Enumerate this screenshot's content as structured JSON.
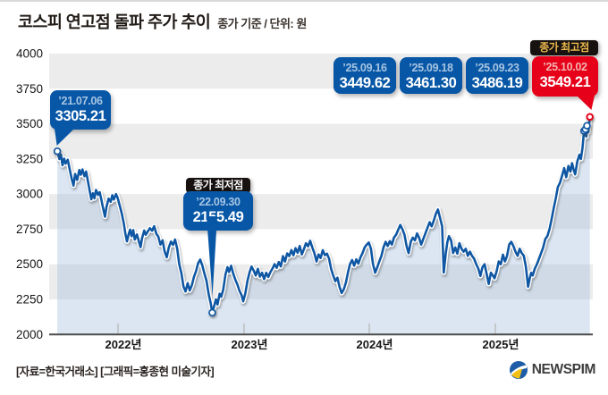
{
  "header": {
    "title": "코스피 연고점 돌파 주가 추이",
    "subtitle": "종가 기준 / 단위: 원"
  },
  "annotations": {
    "start": {
      "date": "’21.07.06",
      "value": "3305.21"
    },
    "low": {
      "tag": "종가 최저점",
      "date": "’22.09.30",
      "value": "2155.49"
    },
    "high": {
      "tag": "종가 최고점",
      "date": "’25.10.02",
      "value": "3549.21"
    },
    "top_boxes": [
      {
        "date": "’25.09.16",
        "value": "3449.62"
      },
      {
        "date": "’25.09.18",
        "value": "3461.30"
      },
      {
        "date": "’25.09.23",
        "value": "3486.19"
      }
    ]
  },
  "footer": {
    "source": "[자료=한국거래소] [그래픽=홍종현 미술기자]",
    "logo_text": "NEWSPIM"
  },
  "colors": {
    "box_blue": "#0857a6",
    "box_red": "#e60019",
    "tag_black": "#17120f",
    "tag_gold": "#ecb94e",
    "line": "#0f57a3",
    "band_gray": "#ececec",
    "band_white": "#ffffff",
    "area_fill": "rgba(161,189,221,0.38)",
    "axis": "#4c4c4c",
    "tick": "#b4b4b4"
  },
  "chart_data": {
    "type": "line",
    "title": "코스피 연고점 돌파 주가 추이",
    "subtitle": "종가 기준 / 단위: 원",
    "unit": "원",
    "ylim": [
      2000,
      4000
    ],
    "y_ticks": [
      4000,
      3750,
      3500,
      3250,
      3000,
      2750,
      2500,
      2250,
      2000
    ],
    "x_ticks": [
      "2022년",
      "2023년",
      "2024년",
      "2025년"
    ],
    "x_unit": "months since 2021-07",
    "grid": "horizontal-bands",
    "legend": "none",
    "markers": [
      {
        "t": 0.2,
        "v": 3305.21,
        "type": "blue",
        "date": "’21.07.06"
      },
      {
        "t": 15.0,
        "v": 2155.49,
        "type": "blue",
        "date": "’22.09.30"
      },
      {
        "t": 50.5,
        "v": 3449.62,
        "type": "blue",
        "date": "’25.09.16"
      },
      {
        "t": 50.63,
        "v": 3461.3,
        "type": "blue",
        "date": "’25.09.18"
      },
      {
        "t": 50.78,
        "v": 3486.19,
        "type": "blue",
        "date": "’25.09.23"
      },
      {
        "t": 51.05,
        "v": 3549.21,
        "type": "red",
        "date": "’25.10.02"
      }
    ],
    "series": [
      {
        "name": "코스피 종가",
        "points": [
          [
            0.2,
            3305
          ],
          [
            0.4,
            3250
          ],
          [
            0.55,
            3281
          ],
          [
            0.7,
            3205
          ],
          [
            0.85,
            3252
          ],
          [
            1.0,
            3217
          ],
          [
            1.2,
            3244
          ],
          [
            1.4,
            3171
          ],
          [
            1.6,
            3100
          ],
          [
            1.75,
            3060
          ],
          [
            1.9,
            3143
          ],
          [
            2.1,
            3100
          ],
          [
            2.3,
            3171
          ],
          [
            2.45,
            3138
          ],
          [
            2.6,
            3175
          ],
          [
            2.8,
            3127
          ],
          [
            2.95,
            3160
          ],
          [
            3.1,
            3103
          ],
          [
            3.3,
            3020
          ],
          [
            3.45,
            2962
          ],
          [
            3.6,
            3006
          ],
          [
            3.75,
            2970
          ],
          [
            3.9,
            3029
          ],
          [
            4.1,
            2994
          ],
          [
            4.25,
            3013
          ],
          [
            4.4,
            2962
          ],
          [
            4.55,
            2909
          ],
          [
            4.75,
            2839
          ],
          [
            4.9,
            2909
          ],
          [
            5.1,
            2968
          ],
          [
            5.3,
            2945
          ],
          [
            5.45,
            2992
          ],
          [
            5.6,
            2961
          ],
          [
            5.8,
            3000
          ],
          [
            5.95,
            2977
          ],
          [
            6.15,
            2921
          ],
          [
            6.35,
            2864
          ],
          [
            6.55,
            2792
          ],
          [
            6.7,
            2720
          ],
          [
            6.85,
            2663
          ],
          [
            7.0,
            2709
          ],
          [
            7.15,
            2747
          ],
          [
            7.3,
            2700
          ],
          [
            7.45,
            2744
          ],
          [
            7.6,
            2676
          ],
          [
            7.8,
            2713
          ],
          [
            8.0,
            2661
          ],
          [
            8.15,
            2622
          ],
          [
            8.3,
            2686
          ],
          [
            8.5,
            2740
          ],
          [
            8.65,
            2710
          ],
          [
            8.85,
            2735
          ],
          [
            9.05,
            2757
          ],
          [
            9.25,
            2739
          ],
          [
            9.45,
            2771
          ],
          [
            9.65,
            2718
          ],
          [
            9.85,
            2696
          ],
          [
            10.05,
            2640
          ],
          [
            10.25,
            2671
          ],
          [
            10.45,
            2592
          ],
          [
            10.65,
            2550
          ],
          [
            10.85,
            2620
          ],
          [
            11.05,
            2662
          ],
          [
            11.25,
            2638
          ],
          [
            11.45,
            2676
          ],
          [
            11.65,
            2611
          ],
          [
            11.85,
            2500
          ],
          [
            12.05,
            2435
          ],
          [
            12.25,
            2342
          ],
          [
            12.45,
            2306
          ],
          [
            12.65,
            2366
          ],
          [
            12.85,
            2314
          ],
          [
            13.05,
            2351
          ],
          [
            13.25,
            2410
          ],
          [
            13.45,
            2452
          ],
          [
            13.65,
            2508
          ],
          [
            13.85,
            2533
          ],
          [
            14.05,
            2491
          ],
          [
            14.25,
            2435
          ],
          [
            14.45,
            2381
          ],
          [
            14.65,
            2290
          ],
          [
            14.85,
            2220
          ],
          [
            15.0,
            2155.49
          ],
          [
            15.2,
            2210
          ],
          [
            15.35,
            2250
          ],
          [
            15.5,
            2213
          ],
          [
            15.7,
            2290
          ],
          [
            15.85,
            2268
          ],
          [
            16.05,
            2320
          ],
          [
            16.25,
            2425
          ],
          [
            16.45,
            2480
          ],
          [
            16.6,
            2445
          ],
          [
            16.8,
            2490
          ],
          [
            17.0,
            2434
          ],
          [
            17.2,
            2390
          ],
          [
            17.4,
            2356
          ],
          [
            17.6,
            2310
          ],
          [
            17.8,
            2280
          ],
          [
            17.95,
            2236
          ],
          [
            18.15,
            2290
          ],
          [
            18.35,
            2380
          ],
          [
            18.55,
            2440
          ],
          [
            18.75,
            2484
          ],
          [
            18.95,
            2455
          ],
          [
            19.15,
            2420
          ],
          [
            19.35,
            2468
          ],
          [
            19.55,
            2412
          ],
          [
            19.75,
            2440
          ],
          [
            19.95,
            2394
          ],
          [
            20.15,
            2440
          ],
          [
            20.35,
            2410
          ],
          [
            20.55,
            2444
          ],
          [
            20.75,
            2470
          ],
          [
            20.95,
            2501
          ],
          [
            21.15,
            2475
          ],
          [
            21.35,
            2516
          ],
          [
            21.55,
            2484
          ],
          [
            21.75,
            2558
          ],
          [
            21.95,
            2520
          ],
          [
            22.15,
            2577
          ],
          [
            22.35,
            2558
          ],
          [
            22.55,
            2601
          ],
          [
            22.75,
            2564
          ],
          [
            22.95,
            2615
          ],
          [
            23.15,
            2582
          ],
          [
            23.35,
            2630
          ],
          [
            23.55,
            2570
          ],
          [
            23.75,
            2608
          ],
          [
            23.95,
            2650
          ],
          [
            24.15,
            2628
          ],
          [
            24.35,
            2667
          ],
          [
            24.55,
            2620
          ],
          [
            24.75,
            2580
          ],
          [
            24.95,
            2520
          ],
          [
            25.15,
            2570
          ],
          [
            25.35,
            2545
          ],
          [
            25.55,
            2600
          ],
          [
            25.75,
            2565
          ],
          [
            25.95,
            2575
          ],
          [
            26.15,
            2540
          ],
          [
            26.35,
            2465
          ],
          [
            26.55,
            2420
          ],
          [
            26.75,
            2380
          ],
          [
            26.95,
            2405
          ],
          [
            27.15,
            2340
          ],
          [
            27.35,
            2295
          ],
          [
            27.55,
            2320
          ],
          [
            27.75,
            2368
          ],
          [
            27.95,
            2440
          ],
          [
            28.15,
            2500
          ],
          [
            28.35,
            2530
          ],
          [
            28.55,
            2490
          ],
          [
            28.75,
            2535
          ],
          [
            28.95,
            2505
          ],
          [
            29.15,
            2550
          ],
          [
            29.35,
            2580
          ],
          [
            29.55,
            2620
          ],
          [
            29.75,
            2640
          ],
          [
            29.95,
            2655
          ],
          [
            30.15,
            2610
          ],
          [
            30.35,
            2500
          ],
          [
            30.55,
            2440
          ],
          [
            30.75,
            2478
          ],
          [
            30.95,
            2520
          ],
          [
            31.15,
            2560
          ],
          [
            31.35,
            2620
          ],
          [
            31.55,
            2660
          ],
          [
            31.75,
            2630
          ],
          [
            31.95,
            2665
          ],
          [
            32.15,
            2640
          ],
          [
            32.35,
            2690
          ],
          [
            32.55,
            2710
          ],
          [
            32.75,
            2745
          ],
          [
            32.95,
            2780
          ],
          [
            33.15,
            2750
          ],
          [
            33.35,
            2710
          ],
          [
            33.55,
            2630
          ],
          [
            33.75,
            2580
          ],
          [
            33.95,
            2660
          ],
          [
            34.15,
            2690
          ],
          [
            34.35,
            2670
          ],
          [
            34.55,
            2720
          ],
          [
            34.75,
            2690
          ],
          [
            34.95,
            2640
          ],
          [
            35.15,
            2680
          ],
          [
            35.35,
            2720
          ],
          [
            35.55,
            2760
          ],
          [
            35.75,
            2800
          ],
          [
            35.95,
            2770
          ],
          [
            36.15,
            2810
          ],
          [
            36.35,
            2860
          ],
          [
            36.55,
            2890
          ],
          [
            36.75,
            2830
          ],
          [
            36.95,
            2770
          ],
          [
            37.1,
            2441
          ],
          [
            37.3,
            2580
          ],
          [
            37.45,
            2660
          ],
          [
            37.6,
            2700
          ],
          [
            37.8,
            2670
          ],
          [
            38.0,
            2580
          ],
          [
            38.2,
            2620
          ],
          [
            38.4,
            2575
          ],
          [
            38.6,
            2650
          ],
          [
            38.8,
            2610
          ],
          [
            39.0,
            2590
          ],
          [
            39.2,
            2610
          ],
          [
            39.4,
            2560
          ],
          [
            39.6,
            2590
          ],
          [
            39.8,
            2560
          ],
          [
            40.0,
            2540
          ],
          [
            40.2,
            2500
          ],
          [
            40.4,
            2470
          ],
          [
            40.6,
            2417
          ],
          [
            40.8,
            2480
          ],
          [
            41.0,
            2500
          ],
          [
            41.2,
            2430
          ],
          [
            41.4,
            2360
          ],
          [
            41.6,
            2440
          ],
          [
            41.8,
            2420
          ],
          [
            41.95,
            2400
          ],
          [
            42.15,
            2450
          ],
          [
            42.35,
            2520
          ],
          [
            42.55,
            2500
          ],
          [
            42.75,
            2568
          ],
          [
            42.95,
            2520
          ],
          [
            43.15,
            2560
          ],
          [
            43.35,
            2640
          ],
          [
            43.55,
            2660
          ],
          [
            43.75,
            2630
          ],
          [
            43.95,
            2590
          ],
          [
            44.15,
            2560
          ],
          [
            44.35,
            2610
          ],
          [
            44.55,
            2580
          ],
          [
            44.75,
            2560
          ],
          [
            44.95,
            2480
          ],
          [
            45.15,
            2340
          ],
          [
            45.3,
            2395
          ],
          [
            45.45,
            2440
          ],
          [
            45.6,
            2420
          ],
          [
            45.8,
            2470
          ],
          [
            46.0,
            2500
          ],
          [
            46.2,
            2540
          ],
          [
            46.4,
            2580
          ],
          [
            46.6,
            2620
          ],
          [
            46.8,
            2680
          ],
          [
            47.0,
            2700
          ],
          [
            47.2,
            2750
          ],
          [
            47.4,
            2820
          ],
          [
            47.6,
            2900
          ],
          [
            47.8,
            2970
          ],
          [
            48.0,
            3050
          ],
          [
            48.2,
            3080
          ],
          [
            48.4,
            3130
          ],
          [
            48.6,
            3185
          ],
          [
            48.8,
            3120
          ],
          [
            49.0,
            3200
          ],
          [
            49.2,
            3160
          ],
          [
            49.35,
            3220
          ],
          [
            49.5,
            3175
          ],
          [
            49.65,
            3140
          ],
          [
            49.85,
            3230
          ],
          [
            50.05,
            3280
          ],
          [
            50.2,
            3250
          ],
          [
            50.35,
            3330
          ],
          [
            50.5,
            3449.62
          ],
          [
            50.58,
            3420
          ],
          [
            50.63,
            3461.3
          ],
          [
            50.72,
            3410
          ],
          [
            50.78,
            3486.19
          ],
          [
            50.9,
            3440
          ],
          [
            51.05,
            3549.21
          ]
        ]
      }
    ]
  }
}
